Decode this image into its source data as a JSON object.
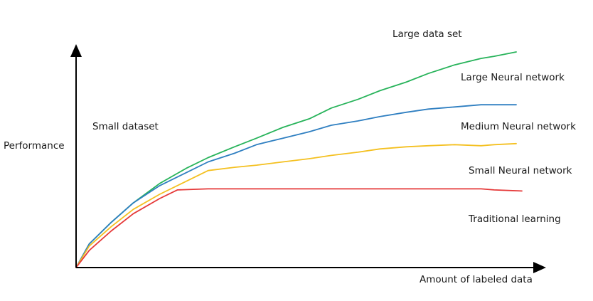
{
  "chart_data": {
    "type": "line",
    "title": "",
    "xlabel": "Amount of labeled data",
    "ylabel": "Performance",
    "xlim": [
      0,
      100
    ],
    "ylim": [
      0,
      100
    ],
    "grid": false,
    "annotations": {
      "small_dataset": "Small dataset",
      "large_dataset": "Large data set"
    },
    "series": [
      {
        "name": "Large Neural network",
        "color": "#27b35a",
        "x": [
          0,
          3,
          8,
          13,
          19,
          25,
          30,
          36,
          41,
          47,
          53,
          58,
          64,
          69,
          75,
          80,
          86,
          92,
          95,
          100
        ],
        "y": [
          0,
          11,
          21,
          30,
          39,
          46,
          51,
          56,
          60,
          65,
          69,
          74,
          78,
          82,
          86,
          90,
          94,
          97,
          98,
          100
        ]
      },
      {
        "name": "Medium Neural network",
        "color": "#2f7fc1",
        "x": [
          0,
          3,
          8,
          13,
          19,
          25,
          30,
          36,
          41,
          47,
          53,
          58,
          64,
          69,
          75,
          80,
          86,
          92,
          95,
          100
        ],
        "y": [
          0,
          11,
          21,
          30,
          38,
          44,
          49,
          53,
          57,
          60,
          63,
          66,
          68,
          70,
          72,
          73.5,
          74.5,
          75.5,
          75.5,
          75.5
        ]
      },
      {
        "name": "Small Neural network",
        "color": "#f4c020",
        "x": [
          0,
          3,
          8,
          13,
          19,
          25,
          30,
          36,
          41,
          47,
          53,
          58,
          64,
          69,
          75,
          80,
          86,
          92,
          95,
          100
        ],
        "y": [
          0,
          10,
          19,
          27,
          34,
          40,
          45,
          46.5,
          47.5,
          49,
          50.5,
          52,
          53.5,
          55,
          56,
          56.5,
          57,
          56.5,
          57,
          57.5
        ]
      },
      {
        "name": "Traditional learning",
        "color": "#e53838",
        "x": [
          0,
          3,
          8,
          13,
          19,
          23,
          30,
          36,
          41,
          47,
          53,
          58,
          64,
          69,
          75,
          80,
          86,
          92,
          95,
          100
        ],
        "y": [
          0,
          8,
          17,
          25,
          32,
          36,
          36.5,
          36.5,
          36.5,
          36.5,
          36.5,
          36.5,
          36.5,
          36.5,
          36.5,
          36.5,
          36.5,
          36.5,
          36,
          35.5
        ]
      }
    ]
  }
}
